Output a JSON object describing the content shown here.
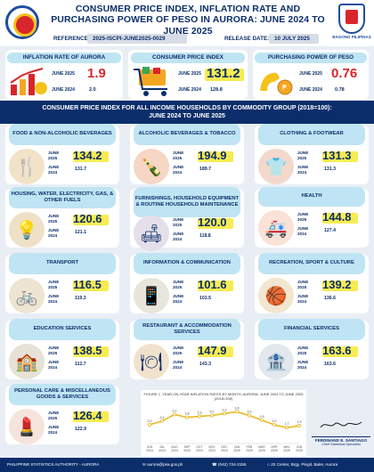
{
  "header": {
    "title": "CONSUMER PRICE INDEX, INFLATION RATE AND PURCHASING POWER OF PESO IN AURORA: JUNE 2024 TO JUNE 2025",
    "reference_label": "REFERENCE NO.",
    "reference_no": "2025-ISCPI-JUNE2025-0029",
    "release_label": "RELEASE DATE:",
    "release_date": "10 JULY 2025",
    "right_logo_text": "BAGONG PILIPINAS"
  },
  "kpis": [
    {
      "title": "INFLATION RATE OF AURORA",
      "label_a": "JUNE 2025",
      "label_b": "JUNE 2024",
      "value_a": "1.9",
      "value_b": "2.0",
      "color": "red"
    },
    {
      "title": "CONSUMER PRICE INDEX",
      "label_a": "JUNE 2025",
      "label_b": "JUNE 2024",
      "value_a": "131.2",
      "value_b": "128.8",
      "color": "navy"
    },
    {
      "title": "PURCHASING POWER OF PESO",
      "label_a": "JUNE 2025",
      "label_b": "JUNE 2024",
      "value_a": "0.76",
      "value_b": "0.78",
      "color": "red"
    }
  ],
  "banner": {
    "line1": "CONSUMER PRICE INDEX FOR ALL INCOME HOUSEHOLDS BY COMMODITY GROUP (2018=100):",
    "line2": "JUNE 2024 TO JUNE 2025"
  },
  "groups": [
    {
      "name": "FOOD & NON-ALCOHOLIC BEVERAGES",
      "label_a": "JUNE 2025",
      "label_b": "JUNE 2024",
      "value_a": "134.2",
      "value_b": "131.7"
    },
    {
      "name": "ALCOHOLIC BEVERAGES & TOBACCO",
      "label_a": "JUNE 2025",
      "label_b": "JUNE 2024",
      "value_a": "194.9",
      "value_b": "189.7"
    },
    {
      "name": "CLOTHING & FOOTWEAR",
      "label_a": "JUNE 2025",
      "label_b": "JUNE 2024",
      "value_a": "131.3",
      "value_b": "131.3"
    },
    {
      "name": "HOUSING, WATER, ELECTRICITY, GAS, & OTHER FUELS",
      "label_a": "JUNE 2025",
      "label_b": "JUNE 2024",
      "value_a": "120.6",
      "value_b": "121.1"
    },
    {
      "name": "FURNISHINGS, HOUSEHOLD EQUIPMENT & ROUTINE HOUSEHOLD MAINTENANCE",
      "label_a": "JUNE 2025",
      "label_b": "JUNE 2024",
      "value_a": "120.0",
      "value_b": "118.8"
    },
    {
      "name": "HEALTH",
      "label_a": "JUNE 2025",
      "label_b": "JUNE 2024",
      "value_a": "144.8",
      "value_b": "127.4"
    },
    {
      "name": "TRANSPORT",
      "label_a": "JUNE 2025",
      "label_b": "JUNE 2024",
      "value_a": "116.5",
      "value_b": "119.3"
    },
    {
      "name": "INFORMATION & COMMUNICATION",
      "label_a": "JUNE 2025",
      "label_b": "JUNE 2024",
      "value_a": "101.6",
      "value_b": "101.5"
    },
    {
      "name": "RECREATION, SPORT & CULTURE",
      "label_a": "JUNE 2025",
      "label_b": "JUNE 2024",
      "value_a": "139.2",
      "value_b": "136.6"
    },
    {
      "name": "EDUCATION SERVICES",
      "label_a": "JUNE 2025",
      "label_b": "JUNE 2024",
      "value_a": "138.5",
      "value_b": "112.7"
    },
    {
      "name": "RESTAURANT & ACCOMMODATION SERVICES",
      "label_a": "JUNE 2025",
      "label_b": "JUNE 2024",
      "value_a": "147.9",
      "value_b": "143.3"
    },
    {
      "name": "FINANCIAL SERVICES",
      "label_a": "JUNE 2025",
      "label_b": "JUNE 2024",
      "value_a": "163.6",
      "value_b": "163.6"
    },
    {
      "name": "PERSONAL CARE & MISCELLANEOUS GOODS & SERVICES",
      "label_a": "JUNE 2025",
      "label_b": "JUNE 2024",
      "value_a": "126.4",
      "value_b": "122.9"
    }
  ],
  "icons": [
    "food-icon",
    "bottles-icon",
    "clothing-icon",
    "lamp-icon",
    "furniture-icon",
    "ambulance-icon",
    "cyclist-icon",
    "phone-icon",
    "basketball-icon",
    "school-icon",
    "restaurant-icon",
    "bank-icon",
    "beauty-icon"
  ],
  "chart_data": {
    "type": "line",
    "title": "FIGURE 1. YEAR-ON-YEAR INFLATION RATES BY MONTH, AURORA: JUNE 2024 TO JUNE 2025 (2018=100)",
    "categories": [
      "JUN 2024",
      "JUL 2024",
      "AUG 2024",
      "SEP 2024",
      "OCT 2024",
      "NOV 2024",
      "DEC 2024",
      "JAN 2025",
      "FEB 2025",
      "MAR 2025",
      "APR 2025",
      "MAY 2025",
      "JUN 2025"
    ],
    "values": [
      2.0,
      2.4,
      3.1,
      2.8,
      2.9,
      3.0,
      3.2,
      3.4,
      3.0,
      2.5,
      2.0,
      1.7,
      1.9
    ],
    "color": "#e8b820"
  },
  "signature": {
    "name": "FERDINAND E. SANTIAGO",
    "title": "Chief Statistical Specialist"
  },
  "footer": {
    "org": "PHILIPPINE STATISTICS AUTHORITY - AURORA",
    "email": "aurora@psa.gov.ph",
    "phone": "(042) 724-2155",
    "address": "JS Center, Brgy. Pingit, Baler, Aurora"
  },
  "colors": {
    "navy": "#0b2e6b",
    "red": "#d8262c",
    "pill": "#bfe4f3",
    "highlight": "#f6ec52"
  }
}
